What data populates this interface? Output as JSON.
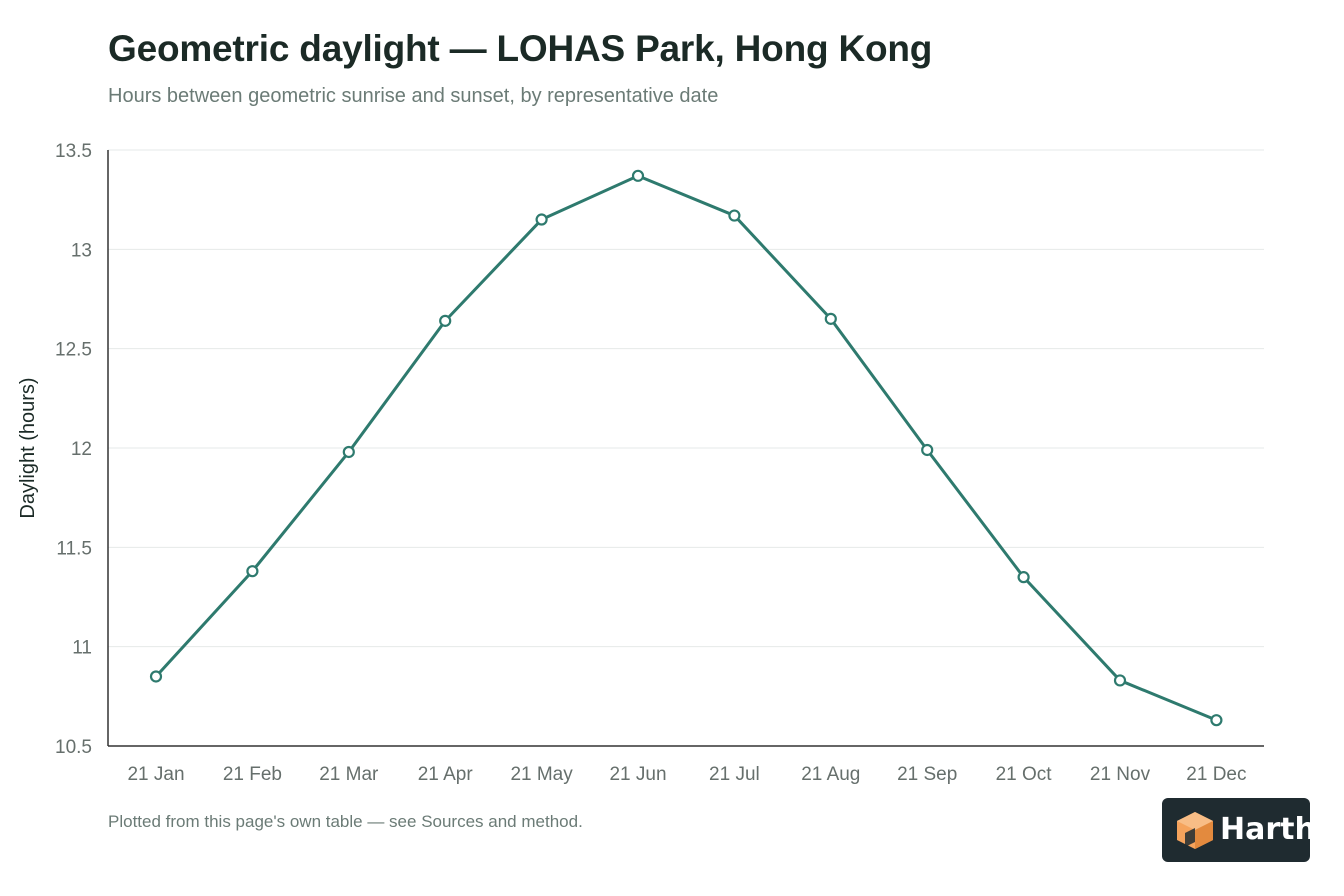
{
  "header": {
    "title": "Geometric daylight — LOHAS Park, Hong Kong",
    "subtitle": "Hours between geometric sunrise and sunset, by representative date"
  },
  "footer": {
    "note": "Plotted from this page's own table — see Sources and method.",
    "brand": "Harth"
  },
  "colors": {
    "line": "#2e7a6e",
    "grid": "#e6e9e8",
    "axis": "#333333",
    "tick_text": "#666f6c",
    "badge_bg": "#1f2b30",
    "logo_orange": "#f5a35c"
  },
  "chart_data": {
    "type": "line",
    "title": "Geometric daylight — LOHAS Park, Hong Kong",
    "subtitle": "Hours between geometric sunrise and sunset, by representative date",
    "xlabel": "",
    "ylabel": "Daylight (hours)",
    "ylim": [
      10.5,
      13.5
    ],
    "yticks": [
      "10.5",
      "11",
      "11.5",
      "12",
      "12.5",
      "13",
      "13.5"
    ],
    "ytick_values": [
      10.5,
      11,
      11.5,
      12,
      12.5,
      13,
      13.5
    ],
    "grid": true,
    "categories": [
      "21 Jan",
      "21 Feb",
      "21 Mar",
      "21 Apr",
      "21 May",
      "21 Jun",
      "21 Jul",
      "21 Aug",
      "21 Sep",
      "21 Oct",
      "21 Nov",
      "21 Dec"
    ],
    "series": [
      {
        "values": [
          10.85,
          11.38,
          11.98,
          12.64,
          13.15,
          13.37,
          13.17,
          12.65,
          11.99,
          11.35,
          10.83,
          10.63
        ]
      }
    ]
  }
}
